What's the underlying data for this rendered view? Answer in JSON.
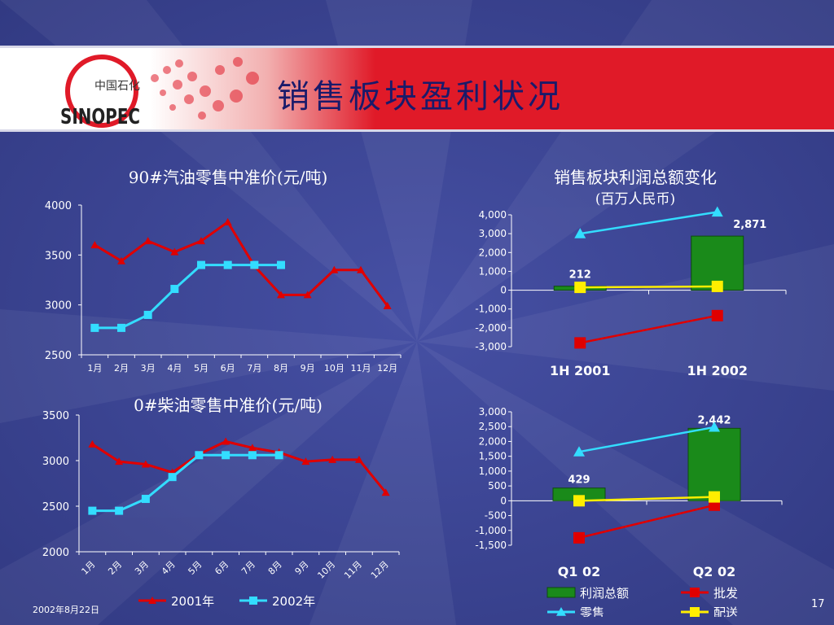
{
  "slide": {
    "title": "销售板块盈利状况",
    "date": "2002年8月22日",
    "page_number": "17",
    "logo_text": "中国石化",
    "logo_brand": "SINOPEC"
  },
  "colors": {
    "red": "#e00000",
    "cyan": "#33ddff",
    "green": "#1a8a1a",
    "yellow": "#ffee00",
    "bg": "#3c4596"
  },
  "chart_data": [
    {
      "id": "gasoline",
      "type": "line",
      "title": "90#汽油零售中准价(元/吨)",
      "categories": [
        "1月",
        "2月",
        "3月",
        "4月",
        "5月",
        "6月",
        "7月",
        "8月",
        "9月",
        "10月",
        "11月",
        "12月"
      ],
      "ylim": [
        2500,
        4000
      ],
      "yticks": [
        "4000",
        "3500",
        "3000",
        "2500"
      ],
      "series": [
        {
          "name": "2001年",
          "color": "#e00000",
          "marker": "triangle",
          "values": [
            3600,
            3440,
            3640,
            3530,
            3640,
            3830,
            3390,
            3100,
            3100,
            3350,
            3350,
            2990
          ]
        },
        {
          "name": "2002年",
          "color": "#33ddff",
          "marker": "square",
          "values": [
            2770,
            2770,
            2900,
            3160,
            3400,
            3400,
            3400,
            3400,
            null,
            null,
            null,
            null
          ]
        }
      ]
    },
    {
      "id": "diesel",
      "type": "line",
      "title": "0#柴油零售中准价(元/吨)",
      "categories": [
        "1月",
        "2月",
        "3月",
        "4月",
        "5月",
        "6月",
        "7月",
        "8月",
        "9月",
        "10月",
        "11月",
        "12月"
      ],
      "ylim": [
        2000,
        3500
      ],
      "yticks": [
        "3500",
        "3000",
        "2500",
        "2000"
      ],
      "legend": [
        "2001年",
        "2002年"
      ],
      "series": [
        {
          "name": "2001年",
          "color": "#e00000",
          "marker": "triangle",
          "values": [
            3180,
            2990,
            2960,
            2870,
            3070,
            3210,
            3140,
            3090,
            2990,
            3010,
            3010,
            2650
          ]
        },
        {
          "name": "2002年",
          "color": "#33ddff",
          "marker": "square",
          "values": [
            2450,
            2450,
            2580,
            2820,
            3060,
            3060,
            3060,
            3060,
            null,
            null,
            null,
            null
          ]
        }
      ]
    },
    {
      "id": "profit_half",
      "type": "bar",
      "title": "销售板块利润总额变化",
      "subtitle": "(百万人民币)",
      "categories": [
        "1H 2001",
        "1H 2002"
      ],
      "ylim": [
        -3000,
        4000
      ],
      "yticks": [
        "4,000",
        "3,000",
        "2,000",
        "1,000",
        "0",
        "-1,000",
        "-2,000",
        "-3,000"
      ],
      "bars": {
        "name": "利润总额",
        "values": [
          212,
          2871
        ],
        "labels": [
          "212",
          "2,871"
        ]
      },
      "series": [
        {
          "name": "零售",
          "color": "#33ddff",
          "marker": "triangle",
          "values": [
            3000,
            4150
          ]
        },
        {
          "name": "批发",
          "color": "#e00000",
          "marker": "square",
          "values": [
            -2800,
            -1350
          ]
        },
        {
          "name": "配送",
          "color": "#ffee00",
          "marker": "square",
          "values": [
            150,
            200
          ]
        }
      ]
    },
    {
      "id": "profit_quarter",
      "type": "bar",
      "categories": [
        "Q1 02",
        "Q2 02"
      ],
      "ylim": [
        -1500,
        3000
      ],
      "yticks": [
        "3,000",
        "2,500",
        "2,000",
        "1,500",
        "1,000",
        "500",
        "0",
        "-500",
        "-1,000",
        "-1,500"
      ],
      "bars": {
        "name": "利润总额",
        "values": [
          429,
          2442
        ],
        "labels": [
          "429",
          "2,442"
        ]
      },
      "series": [
        {
          "name": "零售",
          "color": "#33ddff",
          "marker": "triangle",
          "values": [
            1650,
            2480
          ]
        },
        {
          "name": "批发",
          "color": "#e00000",
          "marker": "square",
          "values": [
            -1250,
            -150
          ]
        },
        {
          "name": "配送",
          "color": "#ffee00",
          "marker": "square",
          "values": [
            0,
            130
          ]
        }
      ],
      "legend": [
        "利润总额",
        "批发",
        "零售",
        "配送"
      ]
    }
  ]
}
